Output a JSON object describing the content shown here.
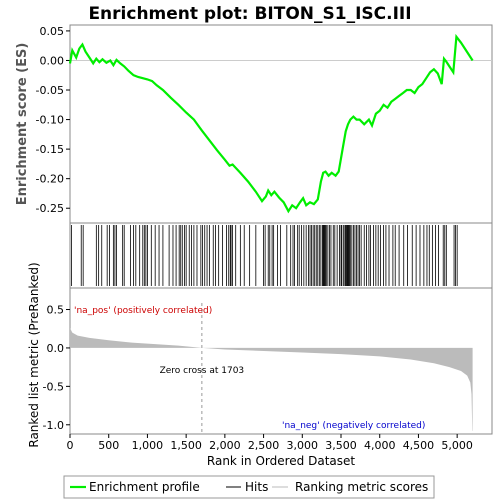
{
  "chart_data": {
    "type": "line",
    "title": "Enrichment plot: BITON_S1_ISC.III",
    "top_panel": {
      "ylabel": "Enrichment score (ES)",
      "ylim": [
        -0.275,
        0.06
      ],
      "yticks": [
        0.05,
        0.0,
        -0.05,
        -0.1,
        -0.15,
        -0.2,
        -0.25
      ],
      "ytick_labels": [
        "0.05",
        "0.00",
        "-0.05",
        "-0.10",
        "-0.15",
        "-0.20",
        "-0.25"
      ],
      "series": [
        {
          "name": "Enrichment profile",
          "color": "#00ee00",
          "x": [
            0,
            30,
            80,
            120,
            160,
            200,
            250,
            300,
            340,
            380,
            420,
            470,
            520,
            560,
            600,
            650,
            700,
            760,
            820,
            880,
            940,
            1000,
            1060,
            1120,
            1200,
            1300,
            1400,
            1500,
            1600,
            1700,
            1800,
            1900,
            2000,
            2060,
            2100,
            2200,
            2300,
            2400,
            2480,
            2530,
            2560,
            2600,
            2640,
            2700,
            2760,
            2820,
            2870,
            2920,
            2970,
            3010,
            3050,
            3100,
            3150,
            3200,
            3240,
            3270,
            3300,
            3340,
            3380,
            3430,
            3470,
            3520,
            3560,
            3590,
            3620,
            3660,
            3700,
            3740,
            3800,
            3860,
            3900,
            3950,
            4000,
            4050,
            4100,
            4150,
            4200,
            4250,
            4300,
            4350,
            4400,
            4450,
            4500,
            4550,
            4600,
            4650,
            4700,
            4750,
            4800,
            4830,
            4860,
            4900,
            4950,
            4990,
            5050,
            5100,
            5150,
            5200
          ],
          "y": [
            -0.005,
            0.017,
            0.005,
            0.02,
            0.027,
            0.015,
            0.005,
            -0.005,
            0.003,
            -0.003,
            0.002,
            -0.004,
            0.0,
            -0.008,
            0.001,
            -0.005,
            -0.01,
            -0.018,
            -0.025,
            -0.028,
            -0.03,
            -0.032,
            -0.035,
            -0.042,
            -0.05,
            -0.063,
            -0.075,
            -0.088,
            -0.1,
            -0.118,
            -0.135,
            -0.152,
            -0.168,
            -0.178,
            -0.176,
            -0.19,
            -0.205,
            -0.222,
            -0.238,
            -0.23,
            -0.22,
            -0.228,
            -0.222,
            -0.232,
            -0.24,
            -0.255,
            -0.245,
            -0.25,
            -0.24,
            -0.233,
            -0.245,
            -0.24,
            -0.243,
            -0.235,
            -0.205,
            -0.19,
            -0.188,
            -0.195,
            -0.19,
            -0.195,
            -0.188,
            -0.15,
            -0.12,
            -0.108,
            -0.1,
            -0.095,
            -0.1,
            -0.1,
            -0.108,
            -0.1,
            -0.11,
            -0.09,
            -0.085,
            -0.075,
            -0.08,
            -0.07,
            -0.065,
            -0.06,
            -0.055,
            -0.05,
            -0.05,
            -0.055,
            -0.045,
            -0.04,
            -0.03,
            -0.02,
            -0.015,
            -0.022,
            -0.04,
            0.003,
            -0.002,
            -0.01,
            -0.02,
            0.04,
            0.03,
            0.02,
            0.01,
            0.0
          ]
        }
      ]
    },
    "hits_positions": [
      20,
      145,
      170,
      340,
      370,
      410,
      480,
      510,
      560,
      580,
      600,
      680,
      700,
      780,
      820,
      850,
      900,
      940,
      960,
      980,
      1000,
      1050,
      1100,
      1150,
      1200,
      1280,
      1330,
      1370,
      1410,
      1430,
      1450,
      1480,
      1500,
      1540,
      1570,
      1600,
      1640,
      1690,
      1710,
      1740,
      1770,
      1800,
      1850,
      1880,
      1920,
      1970,
      2020,
      2050,
      2070,
      2080,
      2100,
      2140,
      2200,
      2250,
      2320,
      2400,
      2500,
      2520,
      2560,
      2580,
      2610,
      2630,
      2680,
      2720,
      2800,
      2850,
      2880,
      2900,
      2940,
      2960,
      2990,
      3020,
      3050,
      3080,
      3100,
      3120,
      3140,
      3160,
      3180,
      3200,
      3220,
      3240,
      3260,
      3270,
      3280,
      3290,
      3300,
      3310,
      3330,
      3350,
      3370,
      3400,
      3420,
      3450,
      3480,
      3500,
      3510,
      3530,
      3550,
      3560,
      3570,
      3580,
      3590,
      3600,
      3610,
      3620,
      3640,
      3660,
      3680,
      3700,
      3720,
      3740,
      3760,
      3800,
      3830,
      3860,
      3880,
      3920,
      3950,
      3980,
      4010,
      4050,
      4080,
      4120,
      4170,
      4200,
      4250,
      4310,
      4360,
      4420,
      4470,
      4520,
      4570,
      4610,
      4640,
      4680,
      4720,
      4760,
      4820,
      4840,
      4860,
      4960,
      4980,
      5000
    ],
    "ranked_panel": {
      "ylabel": "Ranked list metric (PreRanked)",
      "ylim": [
        -1.12,
        0.78
      ],
      "yticks": [
        0.5,
        0.0,
        -0.5,
        -1.0
      ],
      "ytick_labels": [
        "0.5",
        "0.0",
        "-0.5",
        "-1.0"
      ],
      "xlabel": "Rank in Ordered Dataset",
      "xlim": [
        0,
        5450
      ],
      "xticks": [
        0,
        500,
        1000,
        1500,
        2000,
        2500,
        3000,
        3500,
        4000,
        4500,
        5000
      ],
      "xtick_labels": [
        "0",
        "500",
        "1,000",
        "1,500",
        "2,000",
        "2,500",
        "3,000",
        "3,500",
        "4,000",
        "4,500",
        "5,000"
      ],
      "metric_points": [
        [
          0,
          0.26
        ],
        [
          30,
          0.2
        ],
        [
          100,
          0.16
        ],
        [
          250,
          0.13
        ],
        [
          500,
          0.1
        ],
        [
          800,
          0.07
        ],
        [
          1100,
          0.05
        ],
        [
          1400,
          0.03
        ],
        [
          1703,
          0.0
        ],
        [
          2000,
          -0.02
        ],
        [
          2500,
          -0.04
        ],
        [
          3000,
          -0.06
        ],
        [
          3500,
          -0.08
        ],
        [
          4000,
          -0.11
        ],
        [
          4400,
          -0.15
        ],
        [
          4700,
          -0.2
        ],
        [
          4900,
          -0.25
        ],
        [
          5050,
          -0.3
        ],
        [
          5130,
          -0.36
        ],
        [
          5170,
          -0.45
        ],
        [
          5185,
          -0.6
        ],
        [
          5195,
          -1.08
        ],
        [
          5200,
          -1.08
        ]
      ],
      "zero_cross_rank": 1703,
      "zero_cross_label": "Zero cross at 1703",
      "pos_label": "'na_pos' (positively correlated)",
      "neg_label": "'na_neg' (negatively correlated)"
    },
    "n_genes": 5200,
    "legend": [
      "Enrichment profile",
      "Hits",
      "Ranking metric scores"
    ]
  },
  "colors": {
    "es_line": "#00ee00",
    "hits": "#000000",
    "metric_fill": "#bbbbbb",
    "pos_text": "#cc0000",
    "neg_text": "#0000cc"
  }
}
